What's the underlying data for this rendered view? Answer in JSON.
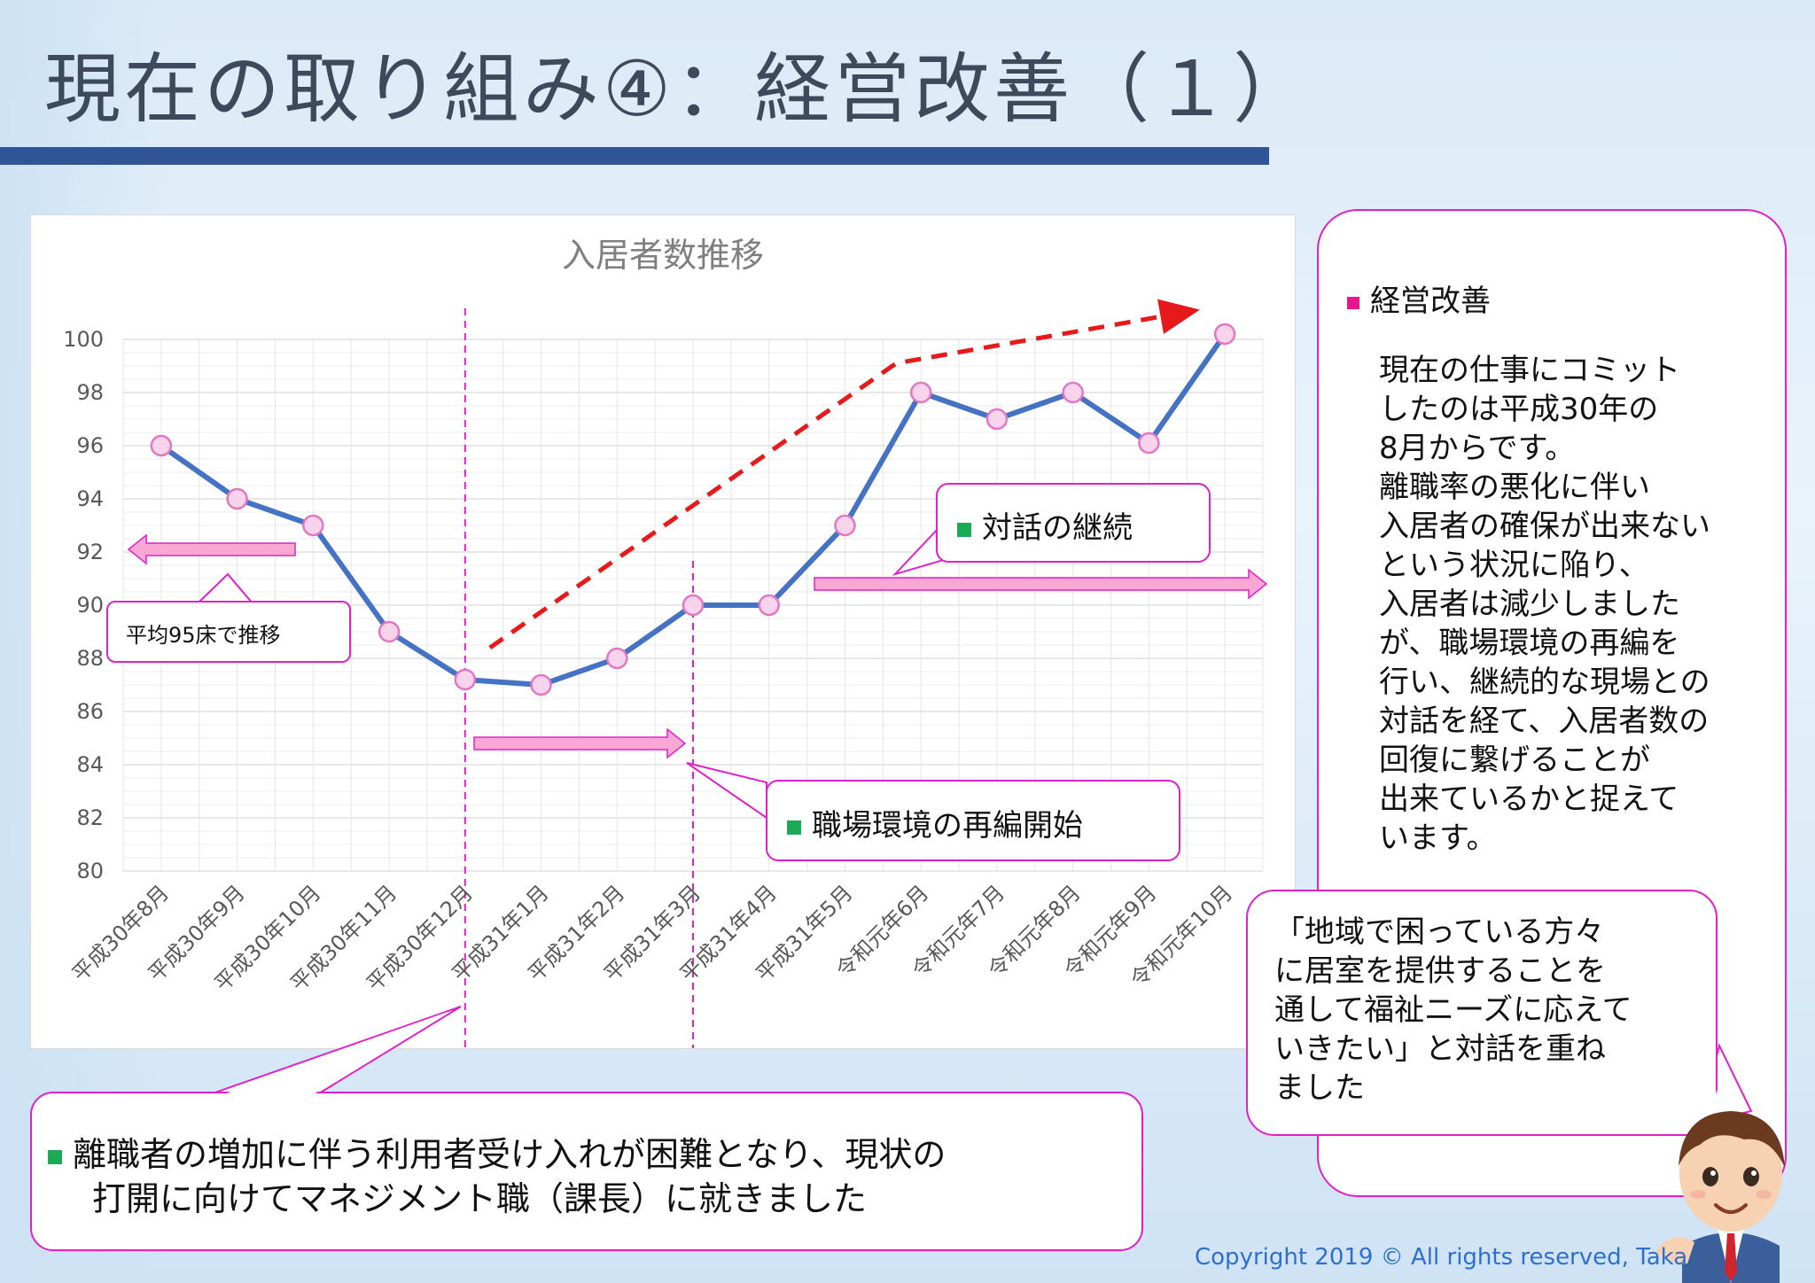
{
  "slide": {
    "title": "現在の取り組み④：経営改善（１）",
    "copyright": "Copyright 2019 © All rights reserved, Taka"
  },
  "chart_data": {
    "type": "line",
    "title": "入居者数推移",
    "categories": [
      "平成30年8月",
      "平成30年9月",
      "平成30年10月",
      "平成30年11月",
      "平成30年12月",
      "平成31年1月",
      "平成31年2月",
      "平成31年3月",
      "平成31年4月",
      "平成31年5月",
      "令和元年6月",
      "令和元年7月",
      "令和元年8月",
      "令和元年9月",
      "令和元年10月"
    ],
    "values": [
      96,
      94,
      93,
      89,
      87.2,
      87,
      88,
      90,
      90,
      93,
      98,
      97,
      98,
      96.1,
      100.2
    ],
    "ylim": [
      80,
      100
    ],
    "yticks": [
      80,
      82,
      84,
      86,
      88,
      90,
      92,
      94,
      96,
      98,
      100
    ],
    "grid": true,
    "line_color": "#4472c4",
    "marker_fill": "#f8d4ec",
    "marker_stroke": "#e377c2",
    "annotations": {
      "avg_label": "平均95床で推移",
      "dialogue_label": "対話の継続",
      "reorg_label": "職場環境の再編開始"
    }
  },
  "right_panel": {
    "heading": "経営改善",
    "lines": [
      "現在の仕事にコミット",
      "したのは平成30年の",
      "8月からです。",
      "離職率の悪化に伴い",
      "入居者の確保が出来ない",
      "という状況に陥り、",
      "入居者は減少しました",
      "が、職場環境の再編を",
      "行い、継続的な現場との",
      "対話を経て、入居者数の",
      "回復に繋げることが",
      "出来ているかと捉えて",
      "います。"
    ]
  },
  "quote": {
    "lines": [
      "「地域で困っている方々",
      "に居室を提供することを",
      "通して福祉ニーズに応えて",
      "いきたい」と対話を重ね",
      "ました"
    ]
  },
  "bottom_note": {
    "lines": [
      "離職者の増加に伴う利用者受け入れが困難となり、現状の",
      "打開に向けてマネジメント職（課長）に就きました"
    ]
  },
  "colors": {
    "title_bar": "#2f5597",
    "callout_border": "#e020c8",
    "bullet_green": "#1aaa55",
    "bullet_pink": "#e6168c",
    "trend_arrow": "#e8191a",
    "pink_arrow": "#f9a8d4"
  }
}
